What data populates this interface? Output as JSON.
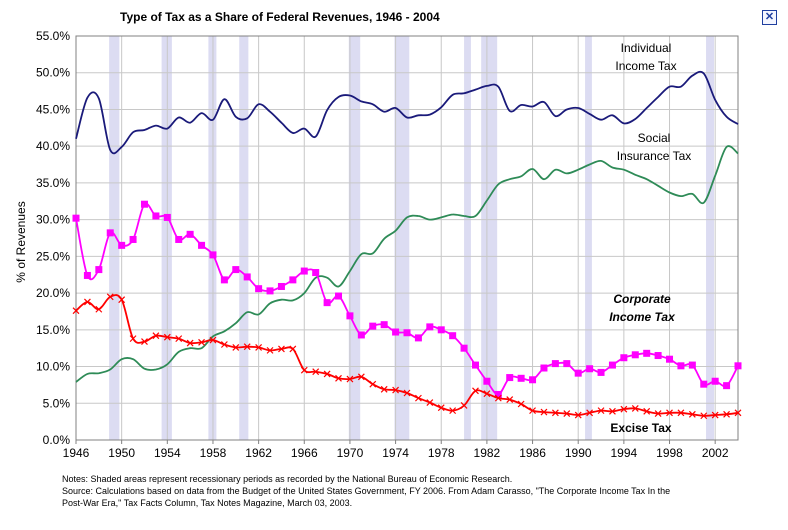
{
  "close_icon": "close-icon",
  "chart_data": {
    "type": "line",
    "title": "Type of Tax as a Share of Federal Revenues, 1946 - 2004",
    "ylabel": "% of Revenues",
    "xlabel": "",
    "xlim": [
      1946,
      2004
    ],
    "ylim": [
      0,
      55
    ],
    "x_ticks": [
      1946,
      1950,
      1954,
      1958,
      1962,
      1966,
      1970,
      1974,
      1978,
      1982,
      1986,
      1990,
      1994,
      1998,
      2002
    ],
    "y_ticks": [
      "0.0%",
      "5.0%",
      "10.0%",
      "15.0%",
      "20.0%",
      "25.0%",
      "30.0%",
      "35.0%",
      "40.0%",
      "45.0%",
      "50.0%",
      "55.0%"
    ],
    "grid": true,
    "recessions": [
      [
        1948.9,
        1949.8
      ],
      [
        1953.5,
        1954.4
      ],
      [
        1957.6,
        1958.3
      ],
      [
        1960.3,
        1961.1
      ],
      [
        1969.9,
        1970.9
      ],
      [
        1973.9,
        1975.2
      ],
      [
        1980.0,
        1980.6
      ],
      [
        1981.5,
        1982.9
      ],
      [
        1990.6,
        1991.2
      ],
      [
        2001.2,
        2001.9
      ]
    ],
    "series": [
      {
        "name": "Individual Income Tax",
        "label_lines": [
          "Individual",
          "Income Tax"
        ],
        "color": "#1a1a7a",
        "marker": "none",
        "x": [
          1946,
          1947,
          1948,
          1949,
          1950,
          1951,
          1952,
          1953,
          1954,
          1955,
          1956,
          1957,
          1958,
          1959,
          1960,
          1961,
          1962,
          1963,
          1964,
          1965,
          1966,
          1967,
          1968,
          1969,
          1970,
          1971,
          1972,
          1973,
          1974,
          1975,
          1976,
          1977,
          1978,
          1979,
          1980,
          1981,
          1982,
          1983,
          1984,
          1985,
          1986,
          1987,
          1988,
          1989,
          1990,
          1991,
          1992,
          1993,
          1994,
          1995,
          1996,
          1997,
          1998,
          1999,
          2000,
          2001,
          2002,
          2003,
          2004
        ],
        "values": [
          41.0,
          46.6,
          46.5,
          39.5,
          39.9,
          41.9,
          42.2,
          42.8,
          42.4,
          43.9,
          43.2,
          44.5,
          43.6,
          46.4,
          44.0,
          43.8,
          45.7,
          44.7,
          43.2,
          41.8,
          42.4,
          41.3,
          44.9,
          46.7,
          46.9,
          46.1,
          45.7,
          44.7,
          45.2,
          43.9,
          44.2,
          44.3,
          45.3,
          47.0,
          47.2,
          47.7,
          48.2,
          48.1,
          44.8,
          45.6,
          45.4,
          46.0,
          44.1,
          45.0,
          45.2,
          44.4,
          43.6,
          44.2,
          43.1,
          43.7,
          45.2,
          46.7,
          48.1,
          48.1,
          49.6,
          49.9,
          46.3,
          44.0,
          43.0
        ]
      },
      {
        "name": "Social Insurance Tax",
        "label_lines": [
          "Social",
          "Insurance Tax"
        ],
        "color": "#2e8b57",
        "marker": "none",
        "x": [
          1946,
          1947,
          1948,
          1949,
          1950,
          1951,
          1952,
          1953,
          1954,
          1955,
          1956,
          1957,
          1958,
          1959,
          1960,
          1961,
          1962,
          1963,
          1964,
          1965,
          1966,
          1967,
          1968,
          1969,
          1970,
          1971,
          1972,
          1973,
          1974,
          1975,
          1976,
          1977,
          1978,
          1979,
          1980,
          1981,
          1982,
          1983,
          1984,
          1985,
          1986,
          1987,
          1988,
          1989,
          1990,
          1991,
          1992,
          1993,
          1994,
          1995,
          1996,
          1997,
          1998,
          1999,
          2000,
          2001,
          2002,
          2003,
          2004
        ],
        "values": [
          7.9,
          9.0,
          9.1,
          9.6,
          11.0,
          11.0,
          9.7,
          9.6,
          10.3,
          12.0,
          12.5,
          12.5,
          14.1,
          14.8,
          15.9,
          17.4,
          17.1,
          18.6,
          19.1,
          19.0,
          20.0,
          22.1,
          22.1,
          20.9,
          23.0,
          25.3,
          25.4,
          27.4,
          28.5,
          30.3,
          30.5,
          30.0,
          30.3,
          30.7,
          30.5,
          30.5,
          32.6,
          34.8,
          35.5,
          35.9,
          36.9,
          35.5,
          36.8,
          36.3,
          36.8,
          37.5,
          38.0,
          37.1,
          36.8,
          36.1,
          35.5,
          34.6,
          33.7,
          33.2,
          33.5,
          32.3,
          36.0,
          39.9,
          39.0
        ]
      },
      {
        "name": "Corporate Income Tax",
        "label_lines": [
          "Corporate",
          "Income Tax"
        ],
        "color": "#ff00ff",
        "marker": "square",
        "x": [
          1946,
          1947,
          1948,
          1949,
          1950,
          1951,
          1952,
          1953,
          1954,
          1955,
          1956,
          1957,
          1958,
          1959,
          1960,
          1961,
          1962,
          1963,
          1964,
          1965,
          1966,
          1967,
          1968,
          1969,
          1970,
          1971,
          1972,
          1973,
          1974,
          1975,
          1976,
          1977,
          1978,
          1979,
          1980,
          1981,
          1982,
          1983,
          1984,
          1985,
          1986,
          1987,
          1988,
          1989,
          1990,
          1991,
          1992,
          1993,
          1994,
          1995,
          1996,
          1997,
          1998,
          1999,
          2000,
          2001,
          2002,
          2003,
          2004
        ],
        "values": [
          30.2,
          22.4,
          23.2,
          28.2,
          26.5,
          27.3,
          32.1,
          30.5,
          30.3,
          27.3,
          28.0,
          26.5,
          25.2,
          21.8,
          23.2,
          22.2,
          20.6,
          20.3,
          20.9,
          21.8,
          23.0,
          22.8,
          18.7,
          19.6,
          16.9,
          14.3,
          15.5,
          15.7,
          14.7,
          14.6,
          13.9,
          15.4,
          15.0,
          14.2,
          12.5,
          10.2,
          8.0,
          6.2,
          8.5,
          8.4,
          8.2,
          9.8,
          10.4,
          10.4,
          9.1,
          9.7,
          9.2,
          10.2,
          11.2,
          11.6,
          11.8,
          11.5,
          11.0,
          10.1,
          10.2,
          7.6,
          8.0,
          7.4,
          10.1
        ]
      },
      {
        "name": "Excise Tax",
        "label_lines": [
          "Excise Tax"
        ],
        "color": "#ff0000",
        "marker": "x",
        "x": [
          1946,
          1947,
          1948,
          1949,
          1950,
          1951,
          1952,
          1953,
          1954,
          1955,
          1956,
          1957,
          1958,
          1959,
          1960,
          1961,
          1962,
          1963,
          1964,
          1965,
          1966,
          1967,
          1968,
          1969,
          1970,
          1971,
          1972,
          1973,
          1974,
          1975,
          1976,
          1977,
          1978,
          1979,
          1980,
          1981,
          1982,
          1983,
          1984,
          1985,
          1986,
          1987,
          1988,
          1989,
          1990,
          1991,
          1992,
          1993,
          1994,
          1995,
          1996,
          1997,
          1998,
          1999,
          2000,
          2001,
          2002,
          2003,
          2004
        ],
        "values": [
          17.6,
          18.8,
          17.8,
          19.5,
          19.1,
          13.8,
          13.4,
          14.2,
          14.0,
          13.8,
          13.2,
          13.3,
          13.6,
          13.0,
          12.6,
          12.7,
          12.6,
          12.2,
          12.4,
          12.4,
          9.5,
          9.3,
          9.0,
          8.4,
          8.3,
          8.6,
          7.6,
          6.9,
          6.8,
          6.4,
          5.7,
          5.1,
          4.4,
          4.0,
          4.7,
          6.7,
          6.3,
          5.7,
          5.5,
          4.9,
          4.0,
          3.8,
          3.7,
          3.6,
          3.4,
          3.7,
          4.0,
          3.9,
          4.2,
          4.3,
          3.9,
          3.6,
          3.7,
          3.7,
          3.5,
          3.3,
          3.4,
          3.5,
          3.7
        ]
      }
    ]
  },
  "notes": {
    "line1": "Notes:  Shaded areas represent recessionary periods as recorded by the National Bureau of Economic Research.",
    "line2": "Source:  Calculations based on data from the Budget of the United States Government, FY 2006. From Adam Carasso, \"The Corporate Income Tax In the",
    "line3": "Post-War Era,\" Tax Facts Column, Tax Notes Magazine, March 03, 2003."
  }
}
